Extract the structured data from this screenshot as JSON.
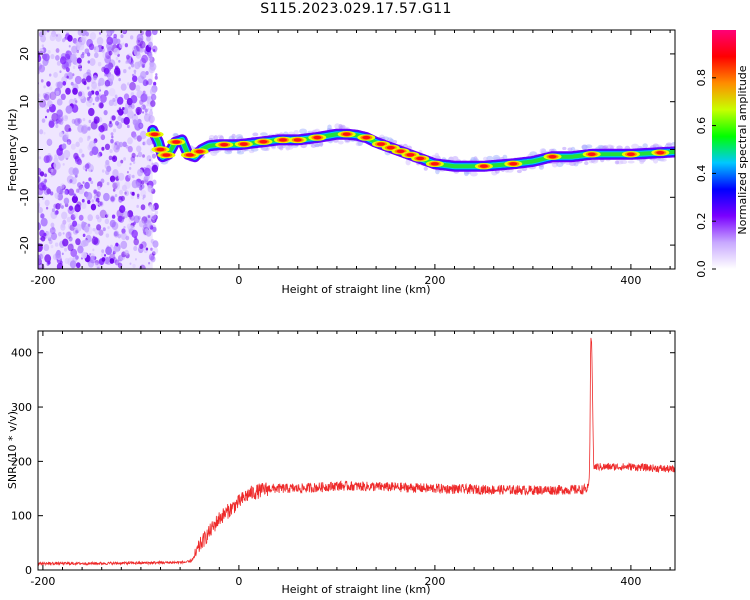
{
  "title": "S115.2023.029.17.57.G11",
  "chart_data": [
    {
      "type": "heatmap",
      "xlabel": "Height of straight line (km)",
      "ylabel": "Frequency (Hz)",
      "xlim": [
        -205,
        445
      ],
      "ylim": [
        -25,
        25
      ],
      "x_ticks": [
        -200,
        0,
        200,
        400
      ],
      "y_ticks": [
        -20,
        -10,
        0,
        10,
        20
      ],
      "colorbar": {
        "label": "Normalized spectral amplitude",
        "range": [
          0,
          1
        ],
        "ticks": [
          "0.0",
          "0.2",
          "0.4",
          "0.6",
          "0.8"
        ],
        "colors": [
          "#ffffff",
          "#c8a8ff",
          "#7a00ff",
          "#0000ff",
          "#00c8ff",
          "#00ff00",
          "#c8ff00",
          "#ff8c00",
          "#ff0000",
          "#ff0077"
        ]
      },
      "noise_region_x": [
        -205,
        -88
      ],
      "ridge_center": {
        "x": [
          -88,
          -82,
          -78,
          -72,
          -65,
          -58,
          -52,
          -45,
          -38,
          -30,
          -20,
          0,
          20,
          40,
          60,
          80,
          100,
          110,
          120,
          130,
          140,
          160,
          180,
          200,
          220,
          250,
          280,
          300,
          320,
          340,
          360,
          400,
          445
        ],
        "y": [
          4,
          1.5,
          -1.5,
          -1,
          1.5,
          2,
          -1,
          -1.5,
          0,
          0.8,
          1,
          1,
          1.5,
          2,
          2,
          2.5,
          3.2,
          3.2,
          3,
          2.5,
          1.5,
          0,
          -1.5,
          -3,
          -3.5,
          -3.5,
          -3,
          -2.5,
          -1.5,
          -1.5,
          -1,
          -1,
          -0.5
        ]
      }
    },
    {
      "type": "line",
      "xlabel": "Height of straight line (km)",
      "ylabel": "SNR (10 * v/v)",
      "xlim": [
        -205,
        445
      ],
      "ylim": [
        0,
        440
      ],
      "x_ticks": [
        -200,
        0,
        200,
        400
      ],
      "y_ticks": [
        0,
        100,
        200,
        300,
        400
      ],
      "color": "#ee2a2a",
      "x": [
        -205,
        -150,
        -100,
        -60,
        -50,
        -45,
        -40,
        -30,
        -20,
        -10,
        0,
        10,
        20,
        30,
        40,
        60,
        80,
        100,
        150,
        200,
        250,
        300,
        350,
        357,
        358,
        359,
        360,
        362,
        380,
        400,
        420,
        445
      ],
      "y": [
        12,
        12,
        13,
        14,
        15,
        25,
        45,
        70,
        95,
        110,
        125,
        140,
        145,
        150,
        150,
        150,
        152,
        155,
        153,
        150,
        148,
        147,
        148,
        150,
        200,
        430,
        420,
        190,
        190,
        190,
        188,
        185
      ]
    }
  ]
}
